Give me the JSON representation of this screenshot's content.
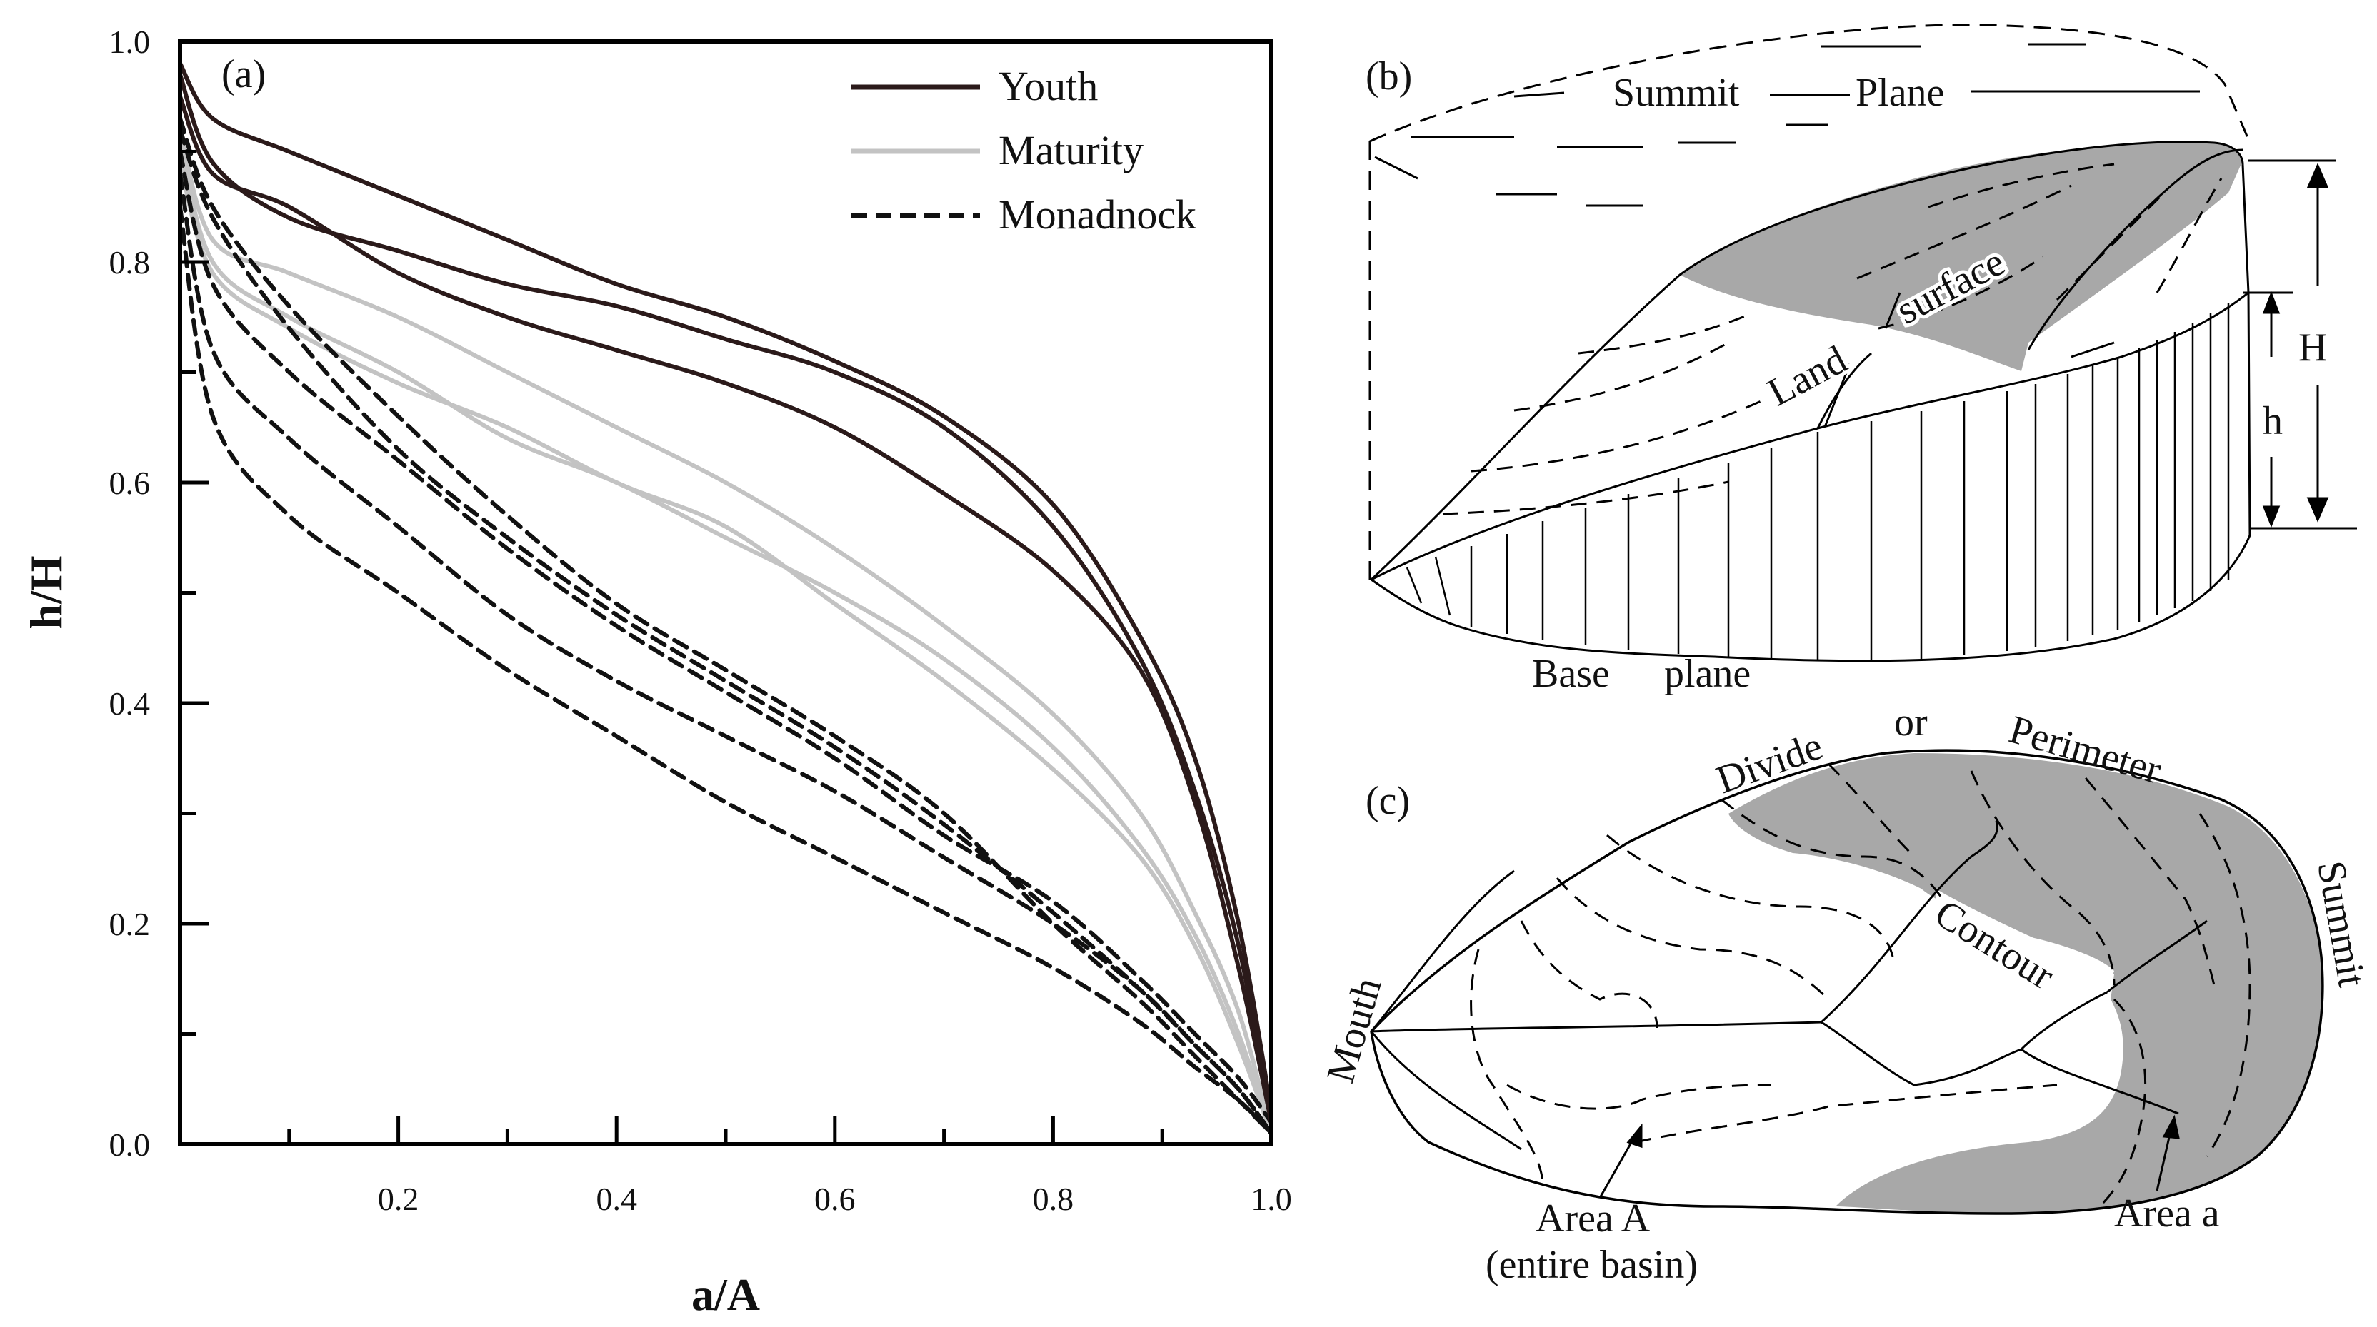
{
  "panel_a": {
    "label": "(a)",
    "xlabel": "a/A",
    "ylabel": "h/H",
    "x_ticks": [
      "0.2",
      "0.4",
      "0.6",
      "0.8",
      "1.0"
    ],
    "y_ticks": [
      "0.0",
      "0.2",
      "0.4",
      "0.6",
      "0.8",
      "1.0"
    ],
    "legend": [
      {
        "label": "Youth",
        "style": "solid",
        "color": "#2b1a1a"
      },
      {
        "label": "Maturity",
        "style": "solid",
        "color": "#c3c3c3"
      },
      {
        "label": "Monadnock",
        "style": "dashed",
        "color": "#111111"
      }
    ]
  },
  "panel_b": {
    "label": "(b)",
    "summit": "Summit",
    "plane": "Plane",
    "land": "Land",
    "surface": "surface",
    "base": "Base",
    "base_plane": "plane",
    "H": "H",
    "h": "h"
  },
  "panel_c": {
    "label": "(c)",
    "divide": "Divide",
    "or": "or",
    "perimeter": "Perimeter",
    "contour": "Contour",
    "summit": "Summit",
    "mouth": "Mouth",
    "area_A": "Area A",
    "entire_basin": "(entire  basin)",
    "area_a": "Area a"
  },
  "chart_data": {
    "type": "line",
    "title": "",
    "xlabel": "a/A",
    "ylabel": "h/H",
    "xlim": [
      0,
      1
    ],
    "ylim": [
      0,
      1
    ],
    "series": [
      {
        "name": "Youth",
        "style": "solid",
        "color": "#2b1a1a",
        "x": [
          0,
          0.03,
          0.1,
          0.2,
          0.3,
          0.4,
          0.5,
          0.6,
          0.7,
          0.8,
          0.88,
          0.93,
          0.97,
          1.0
        ],
        "y": [
          0.98,
          0.93,
          0.9,
          0.86,
          0.82,
          0.78,
          0.75,
          0.71,
          0.66,
          0.58,
          0.46,
          0.35,
          0.2,
          0.03
        ]
      },
      {
        "name": "Youth",
        "style": "solid",
        "color": "#2b1a1a",
        "x": [
          0,
          0.03,
          0.1,
          0.2,
          0.3,
          0.4,
          0.5,
          0.6,
          0.7,
          0.8,
          0.88,
          0.93,
          0.97,
          1.0
        ],
        "y": [
          0.97,
          0.89,
          0.84,
          0.81,
          0.78,
          0.76,
          0.73,
          0.7,
          0.65,
          0.56,
          0.44,
          0.32,
          0.18,
          0.02
        ]
      },
      {
        "name": "Youth",
        "style": "solid",
        "color": "#2b1a1a",
        "x": [
          0,
          0.03,
          0.1,
          0.2,
          0.3,
          0.4,
          0.5,
          0.6,
          0.7,
          0.8,
          0.88,
          0.93,
          0.97,
          1.0
        ],
        "y": [
          0.95,
          0.88,
          0.85,
          0.79,
          0.75,
          0.72,
          0.69,
          0.65,
          0.59,
          0.52,
          0.43,
          0.31,
          0.16,
          0.02
        ]
      },
      {
        "name": "Maturity",
        "style": "solid",
        "color": "#c3c3c3",
        "x": [
          0,
          0.03,
          0.1,
          0.2,
          0.3,
          0.4,
          0.5,
          0.6,
          0.7,
          0.8,
          0.88,
          0.93,
          0.97,
          1.0
        ],
        "y": [
          0.92,
          0.82,
          0.79,
          0.75,
          0.7,
          0.65,
          0.6,
          0.54,
          0.47,
          0.39,
          0.3,
          0.21,
          0.12,
          0.01
        ]
      },
      {
        "name": "Maturity",
        "style": "solid",
        "color": "#c3c3c3",
        "x": [
          0,
          0.03,
          0.1,
          0.2,
          0.3,
          0.4,
          0.5,
          0.6,
          0.7,
          0.8,
          0.88,
          0.93,
          0.97,
          1.0
        ],
        "y": [
          0.91,
          0.8,
          0.75,
          0.7,
          0.64,
          0.6,
          0.55,
          0.5,
          0.44,
          0.36,
          0.27,
          0.19,
          0.1,
          0.01
        ]
      },
      {
        "name": "Maturity",
        "style": "solid",
        "color": "#c3c3c3",
        "x": [
          0,
          0.03,
          0.1,
          0.2,
          0.3,
          0.4,
          0.5,
          0.6,
          0.7,
          0.8,
          0.88,
          0.93,
          0.97,
          1.0
        ],
        "y": [
          0.89,
          0.79,
          0.74,
          0.69,
          0.65,
          0.6,
          0.56,
          0.49,
          0.42,
          0.34,
          0.26,
          0.18,
          0.09,
          0.01
        ]
      },
      {
        "name": "Monadnock",
        "style": "dashed",
        "color": "#111111",
        "x": [
          0,
          0.03,
          0.1,
          0.2,
          0.3,
          0.4,
          0.5,
          0.6,
          0.7,
          0.8,
          0.88,
          0.93,
          0.97,
          1.0
        ],
        "y": [
          0.93,
          0.85,
          0.76,
          0.66,
          0.57,
          0.49,
          0.43,
          0.37,
          0.3,
          0.2,
          0.13,
          0.08,
          0.04,
          0.01
        ]
      },
      {
        "name": "Monadnock",
        "style": "dashed",
        "color": "#111111",
        "x": [
          0,
          0.03,
          0.1,
          0.2,
          0.3,
          0.4,
          0.5,
          0.6,
          0.7,
          0.8,
          0.88,
          0.93,
          0.97,
          1.0
        ],
        "y": [
          0.92,
          0.84,
          0.74,
          0.63,
          0.55,
          0.48,
          0.42,
          0.36,
          0.29,
          0.21,
          0.14,
          0.09,
          0.05,
          0.01
        ]
      },
      {
        "name": "Monadnock",
        "style": "dashed",
        "color": "#111111",
        "x": [
          0,
          0.03,
          0.1,
          0.2,
          0.3,
          0.4,
          0.5,
          0.6,
          0.7,
          0.8,
          0.88,
          0.93,
          0.97,
          1.0
        ],
        "y": [
          0.9,
          0.78,
          0.7,
          0.62,
          0.54,
          0.47,
          0.41,
          0.35,
          0.28,
          0.22,
          0.15,
          0.1,
          0.06,
          0.02
        ]
      },
      {
        "name": "Monadnock",
        "style": "dashed",
        "color": "#111111",
        "x": [
          0,
          0.03,
          0.1,
          0.2,
          0.3,
          0.4,
          0.5,
          0.6,
          0.7,
          0.8,
          0.88,
          0.93,
          0.97,
          1.0
        ],
        "y": [
          0.88,
          0.72,
          0.64,
          0.56,
          0.48,
          0.42,
          0.37,
          0.32,
          0.26,
          0.2,
          0.14,
          0.09,
          0.05,
          0.01
        ]
      },
      {
        "name": "Monadnock",
        "style": "dashed",
        "color": "#111111",
        "x": [
          0,
          0.03,
          0.1,
          0.2,
          0.3,
          0.4,
          0.5,
          0.6,
          0.7,
          0.8,
          0.88,
          0.93,
          0.97,
          1.0
        ],
        "y": [
          0.85,
          0.66,
          0.57,
          0.5,
          0.43,
          0.37,
          0.31,
          0.26,
          0.21,
          0.16,
          0.11,
          0.07,
          0.04,
          0.01
        ]
      }
    ]
  }
}
